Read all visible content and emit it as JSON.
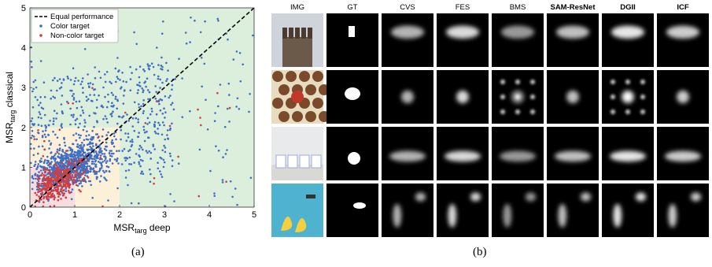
{
  "panel_a": {
    "caption": "(a)",
    "chart_data": {
      "type": "scatter",
      "xlabel_main": "MSR",
      "xlabel_sub": "targ",
      "xlabel_suffix": "deep",
      "ylabel_main": "MSR",
      "ylabel_sub": "targ",
      "ylabel_suffix": "classical",
      "xlim": [
        0,
        5
      ],
      "ylim": [
        0,
        5
      ],
      "x_ticks": [
        "0",
        "1",
        "2",
        "3",
        "4",
        "5"
      ],
      "y_ticks": [
        "0",
        "1",
        "2",
        "3",
        "4",
        "5"
      ],
      "legend": {
        "placement": "top-left",
        "entries": [
          "Equal performance",
          "Color target",
          "Non-color target"
        ]
      },
      "regions": [
        {
          "x": [
            0,
            2
          ],
          "y": [
            0,
            2
          ],
          "color": "#fdf0d8"
        },
        {
          "x": [
            0,
            1
          ],
          "y": [
            0,
            1
          ],
          "color": "#f7dce0"
        }
      ],
      "background_color": "#dcefdc",
      "equal_line": {
        "x": [
          0,
          5
        ],
        "y": [
          0,
          5
        ]
      },
      "series": [
        {
          "name": "Color target",
          "color": "#3f6fc4",
          "count": 1450
        },
        {
          "name": "Non-color target",
          "color": "#d43c3c",
          "count": 380
        }
      ]
    }
  },
  "panel_b": {
    "caption": "(b)",
    "columns": [
      "IMG",
      "GT",
      "CVS",
      "FES",
      "BMS",
      "SAM-ResNet",
      "DGII",
      "ICF"
    ],
    "bold_columns": [
      "SAM-ResNet",
      "DGII",
      "ICF"
    ],
    "rows": [
      "chimney-building",
      "pattern-tiles",
      "cups-on-table",
      "ducks-in-pool"
    ]
  }
}
